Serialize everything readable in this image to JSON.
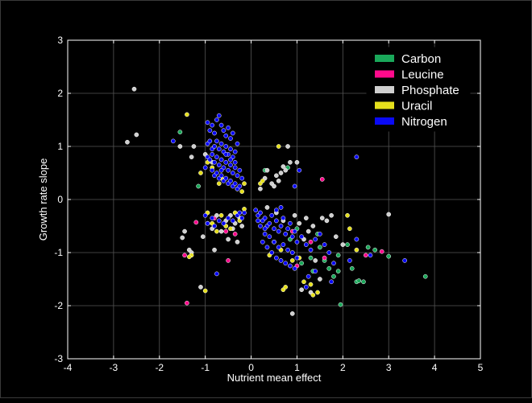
{
  "chart_data": {
    "type": "scatter",
    "title": "",
    "xlabel": "Nutrient mean effect",
    "ylabel": "Growth rate slope",
    "xlim": [
      -4,
      5
    ],
    "ylim": [
      -3,
      3
    ],
    "xticks": [
      "-4",
      "-3",
      "-2",
      "-1",
      "0",
      "1",
      "2",
      "3",
      "4",
      "5"
    ],
    "yticks": [
      "-3",
      "-2",
      "-1",
      "0",
      "1",
      "2",
      "3"
    ],
    "grid": true,
    "legend_position": "top-right",
    "background": "#000000",
    "axis_color": "#ffffff",
    "grid_color": "#555555",
    "series": [
      {
        "name": "Carbon",
        "color": "#1aa85a",
        "points": [
          [
            -1.55,
            1.27
          ],
          [
            -1.15,
            0.25
          ],
          [
            -0.3,
            0.2
          ],
          [
            0.3,
            0.55
          ],
          [
            0.8,
            0.6
          ],
          [
            1.0,
            -0.55
          ],
          [
            1.1,
            -1.2
          ],
          [
            1.3,
            -1.1
          ],
          [
            1.35,
            -1.35
          ],
          [
            1.5,
            -0.9
          ],
          [
            1.6,
            -1.15
          ],
          [
            1.7,
            -1.3
          ],
          [
            1.8,
            -1.45
          ],
          [
            1.9,
            -1.05
          ],
          [
            1.9,
            -1.35
          ],
          [
            1.95,
            -1.98
          ],
          [
            2.1,
            -0.85
          ],
          [
            2.2,
            -1.3
          ],
          [
            2.3,
            -1.55
          ],
          [
            2.35,
            -1.53
          ],
          [
            2.45,
            -1.55
          ],
          [
            2.55,
            -0.9
          ],
          [
            2.7,
            -0.95
          ],
          [
            3.0,
            -1.07
          ],
          [
            3.8,
            -1.45
          ],
          [
            0.85,
            -0.75
          ],
          [
            1.45,
            -0.65
          ]
        ]
      },
      {
        "name": "Leucine",
        "color": "#ff0a8c",
        "points": [
          [
            -1.45,
            -1.05
          ],
          [
            -1.4,
            -1.95
          ],
          [
            -1.2,
            -0.43
          ],
          [
            -0.8,
            -0.35
          ],
          [
            -0.5,
            -1.15
          ],
          [
            -0.35,
            -0.65
          ],
          [
            1.0,
            -1.25
          ],
          [
            1.55,
            0.38
          ],
          [
            2.85,
            -0.98
          ],
          [
            0.9,
            -0.6
          ],
          [
            1.3,
            -0.8
          ],
          [
            1.6,
            -1.1
          ],
          [
            -0.55,
            -0.6
          ],
          [
            2.5,
            -1.05
          ]
        ]
      },
      {
        "name": "Phosphate",
        "color": "#cfcfcf",
        "points": [
          [
            -2.55,
            2.08
          ],
          [
            -2.5,
            1.22
          ],
          [
            -2.7,
            1.08
          ],
          [
            -1.55,
            1.0
          ],
          [
            -1.3,
            0.8
          ],
          [
            -1.25,
            1.0
          ],
          [
            -1.0,
            0.85
          ],
          [
            -0.85,
            0.7
          ],
          [
            -1.5,
            -0.72
          ],
          [
            -1.45,
            -0.6
          ],
          [
            -1.35,
            -0.95
          ],
          [
            -1.3,
            -1.0
          ],
          [
            -1.1,
            -1.65
          ],
          [
            -1.05,
            -0.7
          ],
          [
            -0.95,
            -0.45
          ],
          [
            -0.85,
            -0.55
          ],
          [
            -0.8,
            -0.95
          ],
          [
            -0.75,
            -0.3
          ],
          [
            -0.65,
            -0.6
          ],
          [
            -0.55,
            -0.4
          ],
          [
            -0.5,
            -0.75
          ],
          [
            -0.45,
            -0.3
          ],
          [
            -0.4,
            -0.55
          ],
          [
            -0.35,
            -0.45
          ],
          [
            -0.3,
            -0.8
          ],
          [
            -0.25,
            -0.35
          ],
          [
            -0.2,
            -0.5
          ],
          [
            0.2,
            0.2
          ],
          [
            0.3,
            0.4
          ],
          [
            0.35,
            0.55
          ],
          [
            0.45,
            0.3
          ],
          [
            0.5,
            0.25
          ],
          [
            0.55,
            0.45
          ],
          [
            0.6,
            0.35
          ],
          [
            0.65,
            0.5
          ],
          [
            0.7,
            0.62
          ],
          [
            0.75,
            0.55
          ],
          [
            0.85,
            0.7
          ],
          [
            0.55,
            -0.25
          ],
          [
            0.7,
            -0.4
          ],
          [
            0.95,
            -0.3
          ],
          [
            1.05,
            -0.45
          ],
          [
            1.15,
            -0.75
          ],
          [
            1.25,
            -0.6
          ],
          [
            1.35,
            -0.5
          ],
          [
            1.4,
            -1.15
          ],
          [
            1.55,
            -0.35
          ],
          [
            1.65,
            -0.4
          ],
          [
            1.75,
            -0.3
          ],
          [
            1.85,
            -0.7
          ],
          [
            2.0,
            -0.85
          ],
          [
            0.9,
            -2.15
          ],
          [
            1.1,
            -1.7
          ],
          [
            1.3,
            -1.75
          ],
          [
            1.5,
            -1.5
          ],
          [
            3.0,
            -0.28
          ],
          [
            0.8,
            1.0
          ],
          [
            1.0,
            0.7
          ],
          [
            0.35,
            -0.15
          ],
          [
            1.2,
            -0.35
          ]
        ]
      },
      {
        "name": "Uracil",
        "color": "#e6e01c",
        "points": [
          [
            -1.4,
            1.6
          ],
          [
            -1.1,
            0.5
          ],
          [
            -1.3,
            -1.05
          ],
          [
            -1.35,
            -1.08
          ],
          [
            -0.95,
            0.7
          ],
          [
            -0.85,
            0.6
          ],
          [
            -0.7,
            0.3
          ],
          [
            -0.2,
            0.15
          ],
          [
            -0.15,
            0.3
          ],
          [
            -0.95,
            -0.25
          ],
          [
            -0.85,
            -0.45
          ],
          [
            -0.75,
            -0.6
          ],
          [
            -0.65,
            -0.3
          ],
          [
            -0.55,
            -0.5
          ],
          [
            -0.45,
            -0.55
          ],
          [
            -0.35,
            -0.25
          ],
          [
            -0.25,
            -0.4
          ],
          [
            -0.15,
            -0.18
          ],
          [
            -1.0,
            -1.72
          ],
          [
            0.2,
            0.3
          ],
          [
            0.25,
            0.35
          ],
          [
            0.6,
            1.0
          ],
          [
            0.4,
            -1.05
          ],
          [
            0.65,
            -0.95
          ],
          [
            0.7,
            -1.7
          ],
          [
            0.75,
            -1.65
          ],
          [
            1.05,
            -1.1
          ],
          [
            1.15,
            -1.55
          ],
          [
            1.3,
            -1.6
          ],
          [
            1.35,
            -1.8
          ],
          [
            1.45,
            -1.75
          ],
          [
            2.1,
            -0.3
          ],
          [
            2.15,
            -0.55
          ],
          [
            2.3,
            -0.95
          ],
          [
            -0.65,
            0.4
          ],
          [
            0.5,
            -0.8
          ],
          [
            0.9,
            -1.15
          ]
        ]
      },
      {
        "name": "Nitrogen",
        "color": "#0a0af5",
        "points": [
          [
            -1.7,
            1.1
          ],
          [
            -0.95,
            1.45
          ],
          [
            -0.9,
            1.3
          ],
          [
            -0.85,
            1.4
          ],
          [
            -0.8,
            1.25
          ],
          [
            -0.75,
            1.5
          ],
          [
            -0.7,
            1.58
          ],
          [
            -0.65,
            1.4
          ],
          [
            -0.6,
            1.3
          ],
          [
            -0.55,
            1.2
          ],
          [
            -0.5,
            1.35
          ],
          [
            -0.45,
            1.15
          ],
          [
            -0.4,
            1.25
          ],
          [
            -0.95,
            1.05
          ],
          [
            -0.9,
            1.1
          ],
          [
            -0.85,
            0.95
          ],
          [
            -0.8,
            1.0
          ],
          [
            -0.75,
            1.1
          ],
          [
            -0.7,
            0.95
          ],
          [
            -0.65,
            1.05
          ],
          [
            -0.6,
            0.9
          ],
          [
            -0.55,
            1.0
          ],
          [
            -0.5,
            0.85
          ],
          [
            -0.45,
            0.95
          ],
          [
            -0.4,
            0.8
          ],
          [
            -0.35,
            0.9
          ],
          [
            -0.3,
            1.05
          ],
          [
            -0.95,
            0.8
          ],
          [
            -0.9,
            0.75
          ],
          [
            -0.85,
            0.85
          ],
          [
            -0.8,
            0.7
          ],
          [
            -0.75,
            0.8
          ],
          [
            -0.7,
            0.65
          ],
          [
            -0.65,
            0.75
          ],
          [
            -0.6,
            0.6
          ],
          [
            -0.55,
            0.7
          ],
          [
            -0.5,
            0.55
          ],
          [
            -0.45,
            0.65
          ],
          [
            -0.4,
            0.5
          ],
          [
            -0.35,
            0.6
          ],
          [
            -0.3,
            0.45
          ],
          [
            -0.25,
            0.55
          ],
          [
            -0.2,
            0.4
          ],
          [
            -0.85,
            0.55
          ],
          [
            -0.8,
            0.45
          ],
          [
            -0.75,
            0.5
          ],
          [
            -0.7,
            0.4
          ],
          [
            -0.65,
            0.45
          ],
          [
            -0.6,
            0.35
          ],
          [
            -0.55,
            0.4
          ],
          [
            -0.5,
            0.3
          ],
          [
            -0.45,
            0.35
          ],
          [
            -0.4,
            0.25
          ],
          [
            -0.35,
            0.3
          ],
          [
            -0.3,
            0.2
          ],
          [
            -0.25,
            0.25
          ],
          [
            -1.0,
            0.6
          ],
          [
            -0.65,
            0.55
          ],
          [
            -0.55,
            0.85
          ],
          [
            -0.45,
            0.75
          ],
          [
            -0.35,
            0.7
          ],
          [
            -1.0,
            -0.3
          ],
          [
            -0.95,
            -0.45
          ],
          [
            -0.85,
            -0.35
          ],
          [
            -0.8,
            -0.5
          ],
          [
            -0.7,
            -0.4
          ],
          [
            -0.6,
            -0.45
          ],
          [
            -0.5,
            -0.35
          ],
          [
            -0.4,
            -0.4
          ],
          [
            -0.3,
            -0.3
          ],
          [
            -0.25,
            -0.25
          ],
          [
            -0.2,
            -0.35
          ],
          [
            -0.75,
            -1.4
          ],
          [
            -0.15,
            -0.25
          ],
          [
            0.1,
            -0.2
          ],
          [
            0.15,
            -0.3
          ],
          [
            0.2,
            -0.25
          ],
          [
            0.25,
            -0.4
          ],
          [
            0.3,
            -0.35
          ],
          [
            0.35,
            -0.5
          ],
          [
            0.4,
            -0.45
          ],
          [
            0.45,
            -0.3
          ],
          [
            0.5,
            -0.55
          ],
          [
            0.55,
            -0.4
          ],
          [
            0.6,
            -0.6
          ],
          [
            0.65,
            -0.5
          ],
          [
            0.7,
            -0.35
          ],
          [
            0.75,
            -0.65
          ],
          [
            0.8,
            -0.55
          ],
          [
            0.85,
            -0.45
          ],
          [
            0.9,
            -0.7
          ],
          [
            0.95,
            -0.6
          ],
          [
            1.0,
            -0.8
          ],
          [
            0.2,
            -0.5
          ],
          [
            0.3,
            -0.65
          ],
          [
            0.4,
            -0.7
          ],
          [
            0.5,
            -0.8
          ],
          [
            0.6,
            -0.9
          ],
          [
            0.7,
            -0.85
          ],
          [
            0.8,
            -0.95
          ],
          [
            0.9,
            -1.0
          ],
          [
            1.0,
            -1.1
          ],
          [
            0.25,
            -0.8
          ],
          [
            0.35,
            -0.9
          ],
          [
            0.45,
            -1.0
          ],
          [
            0.55,
            -1.1
          ],
          [
            0.65,
            -1.15
          ],
          [
            0.75,
            -1.2
          ],
          [
            0.85,
            -1.25
          ],
          [
            0.95,
            -1.3
          ],
          [
            1.1,
            -0.7
          ],
          [
            1.2,
            -0.85
          ],
          [
            1.3,
            -0.95
          ],
          [
            1.4,
            -0.75
          ],
          [
            1.5,
            -0.65
          ],
          [
            1.6,
            -0.85
          ],
          [
            1.7,
            -1.0
          ],
          [
            1.8,
            -1.2
          ],
          [
            1.25,
            -1.45
          ],
          [
            1.4,
            -1.35
          ],
          [
            1.75,
            -1.55
          ],
          [
            2.15,
            -1.15
          ],
          [
            2.3,
            -0.75
          ],
          [
            2.6,
            -1.05
          ],
          [
            3.35,
            -1.15
          ],
          [
            2.3,
            0.8
          ],
          [
            1.05,
            0.55
          ],
          [
            0.95,
            0.25
          ],
          [
            1.2,
            -1.65
          ],
          [
            0.55,
            -0.2
          ],
          [
            0.65,
            -0.15
          ],
          [
            0.15,
            -0.4
          ],
          [
            0.3,
            -0.55
          ]
        ]
      }
    ]
  }
}
